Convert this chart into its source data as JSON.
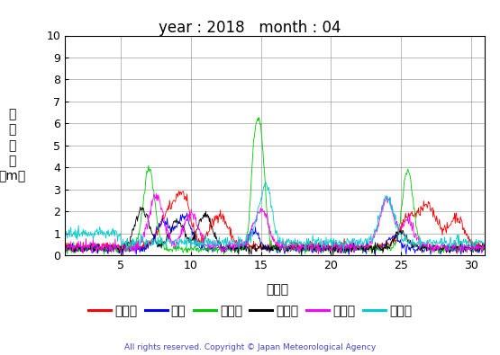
{
  "title": "year : 2018   month : 04",
  "xlabel": "（日）",
  "ylabel_lines": [
    "有",
    "義",
    "波",
    "高",
    "（m）"
  ],
  "copyright": "All rights reserved. Copyright © Japan Meteorological Agency",
  "xlim": [
    1,
    31
  ],
  "ylim": [
    0,
    10
  ],
  "yticks": [
    0,
    1,
    2,
    3,
    4,
    5,
    6,
    7,
    8,
    9,
    10
  ],
  "xticks": [
    5,
    10,
    15,
    20,
    25,
    30
  ],
  "series_colors": [
    "#ff0000",
    "#0000ff",
    "#00cc00",
    "#000000",
    "#ff00ff",
    "#00cccc"
  ],
  "series_labels": [
    "上ノ国",
    "唐桑",
    "石廀崎",
    "経ヶ尌",
    "生月島",
    "屋久島"
  ],
  "background_color": "#ffffff",
  "grid_color": "#888888",
  "title_fontsize": 12,
  "axis_fontsize": 10,
  "legend_fontsize": 10,
  "copyright_color": "#4444cc"
}
